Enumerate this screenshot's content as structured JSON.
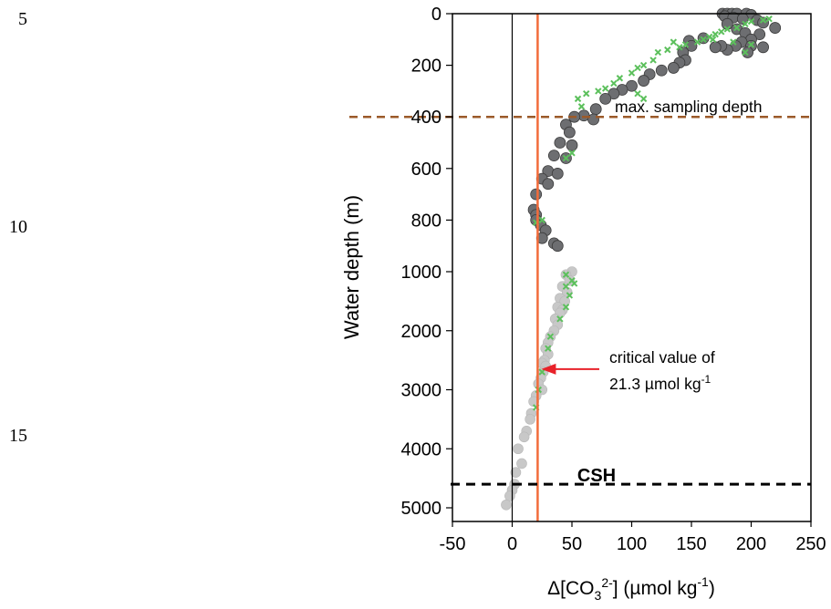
{
  "page": {
    "line_numbers": [
      "5",
      "10",
      "15"
    ]
  },
  "chart_data": {
    "type": "scatter",
    "title": "",
    "xlabel": "Δ[CO3²⁻] (µmol kg⁻¹)",
    "ylabel": "Water depth (m)",
    "x_ticks": [
      -50,
      0,
      50,
      100,
      150,
      200,
      250
    ],
    "y_ticks_upper": [
      0,
      200,
      400,
      600,
      800,
      1000
    ],
    "y_ticks_lower": [
      2000,
      3000,
      4000,
      5000
    ],
    "xlim": [
      -50,
      250
    ],
    "ylim_upper": [
      0,
      1000
    ],
    "ylim_lower": [
      1000,
      5000
    ],
    "annotations": {
      "max_sampling_label": "max. sampling depth",
      "max_sampling_depth": 400,
      "csh_label": "CSH",
      "csh_depth": 4600,
      "critical_line1": "critical value of",
      "critical_line2": "21.3 µmol kg",
      "critical_sup": "-1",
      "critical_value": 21.3
    },
    "colors": {
      "dark_points": "#6d6e71",
      "light_points": "#c8c8c8",
      "green_x": "#5cc05c",
      "critical_line": "#f26b3a",
      "sampling_line": "#9b5a2a",
      "csh_line": "#000000",
      "arrow": "#e8222a"
    },
    "series": [
      {
        "marker": "dark-circle",
        "points": [
          [
            176,
            0
          ],
          [
            180,
            0
          ],
          [
            184,
            0
          ],
          [
            188,
            0
          ],
          [
            196,
            0
          ],
          [
            200,
            5
          ],
          [
            178,
            10
          ],
          [
            185,
            15
          ],
          [
            193,
            20
          ],
          [
            205,
            25
          ],
          [
            210,
            35
          ],
          [
            220,
            55
          ],
          [
            180,
            40
          ],
          [
            188,
            60
          ],
          [
            195,
            75
          ],
          [
            207,
            80
          ],
          [
            200,
            100
          ],
          [
            192,
            110
          ],
          [
            187,
            125
          ],
          [
            200,
            125
          ],
          [
            210,
            130
          ],
          [
            197,
            150
          ],
          [
            180,
            140
          ],
          [
            175,
            125
          ],
          [
            170,
            130
          ],
          [
            160,
            95
          ],
          [
            148,
            105
          ],
          [
            150,
            125
          ],
          [
            143,
            150
          ],
          [
            145,
            180
          ],
          [
            140,
            190
          ],
          [
            135,
            210
          ],
          [
            125,
            220
          ],
          [
            115,
            235
          ],
          [
            110,
            260
          ],
          [
            100,
            280
          ],
          [
            92,
            295
          ],
          [
            85,
            310
          ],
          [
            78,
            330
          ],
          [
            70,
            370
          ],
          [
            60,
            395
          ],
          [
            52,
            400
          ],
          [
            68,
            410
          ],
          [
            45,
            430
          ],
          [
            48,
            460
          ],
          [
            40,
            500
          ],
          [
            50,
            510
          ],
          [
            35,
            550
          ],
          [
            45,
            560
          ],
          [
            30,
            610
          ],
          [
            38,
            620
          ],
          [
            25,
            640
          ],
          [
            30,
            660
          ],
          [
            20,
            700
          ],
          [
            18,
            760
          ],
          [
            20,
            780
          ],
          [
            20,
            800
          ],
          [
            24,
            820
          ],
          [
            28,
            840
          ],
          [
            25,
            870
          ],
          [
            35,
            890
          ],
          [
            38,
            900
          ]
        ]
      },
      {
        "marker": "light-circle",
        "points": [
          [
            50,
            1000
          ],
          [
            45,
            1050
          ],
          [
            48,
            1150
          ],
          [
            42,
            1250
          ],
          [
            46,
            1350
          ],
          [
            40,
            1450
          ],
          [
            44,
            1500
          ],
          [
            38,
            1600
          ],
          [
            42,
            1650
          ],
          [
            40,
            1700
          ],
          [
            36,
            1800
          ],
          [
            38,
            1900
          ],
          [
            35,
            2000
          ],
          [
            32,
            2100
          ],
          [
            30,
            2200
          ],
          [
            28,
            2300
          ],
          [
            30,
            2400
          ],
          [
            27,
            2500
          ],
          [
            25,
            2550
          ],
          [
            28,
            2600
          ],
          [
            26,
            2700
          ],
          [
            24,
            2800
          ],
          [
            22,
            2900
          ],
          [
            25,
            3000
          ],
          [
            20,
            3100
          ],
          [
            18,
            3200
          ],
          [
            16,
            3400
          ],
          [
            15,
            3500
          ],
          [
            12,
            3700
          ],
          [
            10,
            3800
          ],
          [
            5,
            4000
          ],
          [
            8,
            4250
          ],
          [
            3,
            4400
          ],
          [
            2,
            4600
          ],
          [
            0,
            4700
          ],
          [
            -2,
            4800
          ],
          [
            -5,
            4950
          ]
        ]
      },
      {
        "marker": "green-x",
        "points": [
          [
            215,
            20
          ],
          [
            210,
            25
          ],
          [
            200,
            30
          ],
          [
            195,
            40
          ],
          [
            188,
            55
          ],
          [
            180,
            60
          ],
          [
            175,
            70
          ],
          [
            170,
            80
          ],
          [
            165,
            90
          ],
          [
            168,
            100
          ],
          [
            160,
            100
          ],
          [
            155,
            110
          ],
          [
            145,
            120
          ],
          [
            135,
            110
          ],
          [
            140,
            130
          ],
          [
            130,
            140
          ],
          [
            122,
            150
          ],
          [
            118,
            180
          ],
          [
            110,
            200
          ],
          [
            105,
            210
          ],
          [
            100,
            230
          ],
          [
            90,
            250
          ],
          [
            85,
            270
          ],
          [
            78,
            290
          ],
          [
            72,
            300
          ],
          [
            62,
            310
          ],
          [
            55,
            330
          ],
          [
            58,
            360
          ],
          [
            110,
            330
          ],
          [
            105,
            310
          ],
          [
            195,
            150
          ],
          [
            200,
            120
          ],
          [
            185,
            110
          ],
          [
            50,
            540
          ],
          [
            45,
            560
          ],
          [
            25,
            800
          ],
          [
            20,
            810
          ],
          [
            45,
            1050
          ],
          [
            50,
            1150
          ],
          [
            45,
            1250
          ],
          [
            52,
            1200
          ],
          [
            48,
            1400
          ],
          [
            45,
            1600
          ],
          [
            40,
            1800
          ],
          [
            32,
            2100
          ],
          [
            30,
            2300
          ],
          [
            25,
            2700
          ],
          [
            22,
            3000
          ],
          [
            20,
            3300
          ]
        ]
      }
    ]
  }
}
